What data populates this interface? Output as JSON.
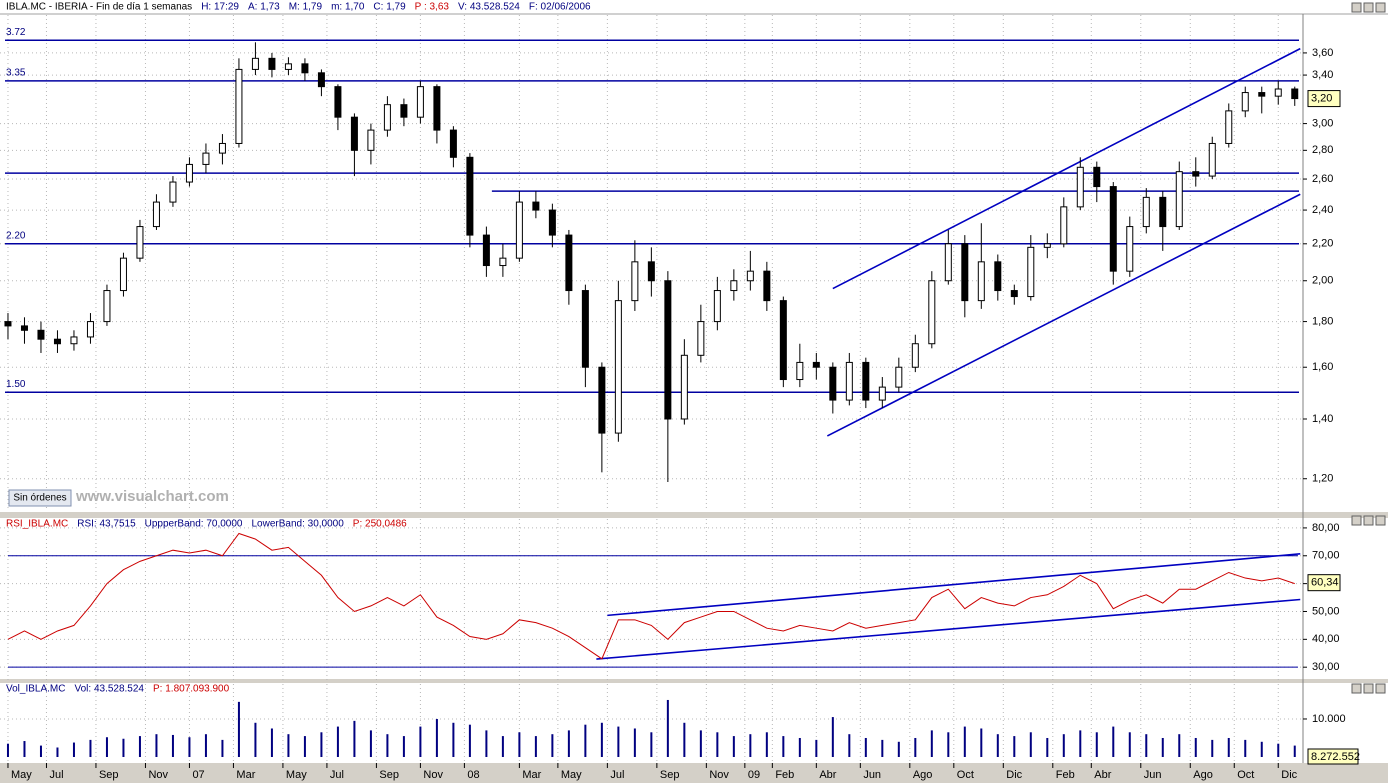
{
  "ui": {
    "button": "Sin órdenes",
    "watermark": "www.visualchart.com"
  },
  "chart_data": [
    {
      "type": "candlestick",
      "header": [
        {
          "text": "IBLA.MC - IBERIA - Fin de día 1 semanas",
          "color": "#000000"
        },
        {
          "text": "H: 17:29",
          "color": "#000080"
        },
        {
          "text": "A: 1,73",
          "color": "#000080"
        },
        {
          "text": "M: 1,79",
          "color": "#000080"
        },
        {
          "text": "m: 1,70",
          "color": "#000080"
        },
        {
          "text": "C: 1,79",
          "color": "#000080"
        },
        {
          "text": "P : 3,63",
          "color": "#cc0000"
        },
        {
          "text": "V: 43.528.524",
          "color": "#000080"
        },
        {
          "text": "F: 02/06/2006",
          "color": "#000080"
        }
      ],
      "log": true,
      "grid": true,
      "color": "#000000",
      "xlim": [
        -1.45,
        235.5
      ],
      "ylim": [
        1.107,
        3.97
      ],
      "xticks": [
        {
          "value": 0,
          "label": "May"
        },
        {
          "value": 7,
          "label": "Jul"
        },
        {
          "value": 16,
          "label": "Sep"
        },
        {
          "value": 25,
          "label": "Nov"
        },
        {
          "value": 33,
          "label": "07"
        },
        {
          "value": 41,
          "label": "Mar"
        },
        {
          "value": 50,
          "label": "May"
        },
        {
          "value": 58,
          "label": "Jul"
        },
        {
          "value": 67,
          "label": "Sep"
        },
        {
          "value": 75,
          "label": "Nov"
        },
        {
          "value": 83,
          "label": "08"
        },
        {
          "value": 93,
          "label": "Mar"
        },
        {
          "value": 100,
          "label": "May"
        },
        {
          "value": 109,
          "label": "Jul"
        },
        {
          "value": 118,
          "label": "Sep"
        },
        {
          "value": 127,
          "label": "Nov"
        },
        {
          "value": 134,
          "label": "09"
        },
        {
          "value": 139,
          "label": "Feb"
        },
        {
          "value": 147,
          "label": "Abr"
        },
        {
          "value": 155,
          "label": "Jun"
        },
        {
          "value": 164,
          "label": "Ago"
        },
        {
          "value": 172,
          "label": "Oct"
        },
        {
          "value": 181,
          "label": "Dic"
        },
        {
          "value": 190,
          "label": "Feb"
        },
        {
          "value": 197,
          "label": "Abr"
        },
        {
          "value": 206,
          "label": "Jun"
        },
        {
          "value": 215,
          "label": "Ago"
        },
        {
          "value": 223,
          "label": "Oct"
        },
        {
          "value": 231,
          "label": "Dic"
        }
      ],
      "yticks": [
        {
          "value": 1.2,
          "label": "1,20"
        },
        {
          "value": 1.4,
          "label": "1,40"
        },
        {
          "value": 1.6,
          "label": "1,60"
        },
        {
          "value": 1.8,
          "label": "1,80"
        },
        {
          "value": 2.0,
          "label": "2,00"
        },
        {
          "value": 2.2,
          "label": "2,20"
        },
        {
          "value": 2.4,
          "label": "2,40"
        },
        {
          "value": 2.6,
          "label": "2,60"
        },
        {
          "value": 2.8,
          "label": "2,80"
        },
        {
          "value": 3.0,
          "label": "3,00"
        },
        {
          "value": 3.4,
          "label": "3,40"
        },
        {
          "value": 3.6,
          "label": "3,60"
        }
      ],
      "last": {
        "value": 3.2,
        "label": "3,20"
      },
      "hlines": [
        {
          "value": 3.72,
          "label": "3.72"
        },
        {
          "value": 3.35,
          "label": "3.35"
        },
        {
          "value": 2.64
        },
        {
          "value": 2.52,
          "from": 88
        },
        {
          "value": 2.2,
          "label": "2.20"
        },
        {
          "value": 1.5,
          "label": "1.50"
        }
      ],
      "trendlines": [
        {
          "x": [
            150,
            235
          ],
          "y": [
            1.96,
            3.64
          ]
        },
        {
          "x": [
            149,
            235
          ],
          "y": [
            1.34,
            2.5
          ]
        }
      ],
      "x": [
        0,
        3,
        6,
        9,
        12,
        15,
        18,
        21,
        24,
        27,
        30,
        33,
        36,
        39,
        42,
        45,
        48,
        51,
        54,
        57,
        60,
        63,
        66,
        69,
        72,
        75,
        78,
        81,
        84,
        87,
        90,
        93,
        96,
        99,
        102,
        105,
        108,
        111,
        114,
        117,
        120,
        123,
        126,
        129,
        132,
        135,
        138,
        141,
        144,
        147,
        150,
        153,
        156,
        159,
        162,
        165,
        168,
        171,
        174,
        177,
        180,
        183,
        186,
        189,
        192,
        195,
        198,
        201,
        204,
        207,
        210,
        213,
        216,
        219,
        222,
        225,
        228,
        231,
        234
      ],
      "ohlc": [
        [
          1.8,
          1.84,
          1.72,
          1.78
        ],
        [
          1.78,
          1.82,
          1.7,
          1.76
        ],
        [
          1.76,
          1.8,
          1.66,
          1.72
        ],
        [
          1.72,
          1.76,
          1.66,
          1.7
        ],
        [
          1.7,
          1.76,
          1.67,
          1.73
        ],
        [
          1.73,
          1.84,
          1.7,
          1.8
        ],
        [
          1.8,
          1.98,
          1.78,
          1.95
        ],
        [
          1.95,
          2.15,
          1.92,
          2.12
        ],
        [
          2.12,
          2.34,
          2.1,
          2.3
        ],
        [
          2.3,
          2.5,
          2.28,
          2.45
        ],
        [
          2.45,
          2.62,
          2.42,
          2.58
        ],
        [
          2.58,
          2.75,
          2.55,
          2.7
        ],
        [
          2.7,
          2.85,
          2.64,
          2.78
        ],
        [
          2.78,
          2.92,
          2.7,
          2.85
        ],
        [
          2.85,
          3.55,
          2.82,
          3.45
        ],
        [
          3.45,
          3.7,
          3.4,
          3.55
        ],
        [
          3.55,
          3.6,
          3.38,
          3.45
        ],
        [
          3.45,
          3.56,
          3.4,
          3.5
        ],
        [
          3.5,
          3.55,
          3.35,
          3.42
        ],
        [
          3.42,
          3.45,
          3.22,
          3.3
        ],
        [
          3.3,
          3.32,
          2.95,
          3.05
        ],
        [
          3.05,
          3.08,
          2.62,
          2.8
        ],
        [
          2.8,
          3.0,
          2.7,
          2.95
        ],
        [
          2.95,
          3.22,
          2.9,
          3.15
        ],
        [
          3.15,
          3.2,
          2.98,
          3.05
        ],
        [
          3.05,
          3.35,
          3.0,
          3.3
        ],
        [
          3.3,
          3.32,
          2.85,
          2.95
        ],
        [
          2.95,
          2.98,
          2.68,
          2.75
        ],
        [
          2.75,
          2.78,
          2.18,
          2.25
        ],
        [
          2.25,
          2.3,
          2.02,
          2.08
        ],
        [
          2.08,
          2.2,
          2.02,
          2.12
        ],
        [
          2.12,
          2.52,
          2.1,
          2.45
        ],
        [
          2.45,
          2.52,
          2.35,
          2.4
        ],
        [
          2.4,
          2.44,
          2.18,
          2.25
        ],
        [
          2.25,
          2.28,
          1.88,
          1.95
        ],
        [
          1.95,
          1.98,
          1.52,
          1.6
        ],
        [
          1.6,
          1.62,
          1.22,
          1.35
        ],
        [
          1.35,
          2.0,
          1.32,
          1.9
        ],
        [
          1.9,
          2.22,
          1.85,
          2.1
        ],
        [
          2.1,
          2.18,
          1.92,
          2.0
        ],
        [
          2.0,
          2.05,
          1.19,
          1.4
        ],
        [
          1.4,
          1.72,
          1.38,
          1.65
        ],
        [
          1.65,
          1.88,
          1.62,
          1.8
        ],
        [
          1.8,
          2.02,
          1.76,
          1.95
        ],
        [
          1.95,
          2.06,
          1.9,
          2.0
        ],
        [
          2.0,
          2.16,
          1.95,
          2.05
        ],
        [
          2.05,
          2.1,
          1.85,
          1.9
        ],
        [
          1.9,
          1.92,
          1.52,
          1.55
        ],
        [
          1.55,
          1.7,
          1.52,
          1.62
        ],
        [
          1.62,
          1.66,
          1.55,
          1.6
        ],
        [
          1.6,
          1.62,
          1.42,
          1.47
        ],
        [
          1.47,
          1.66,
          1.45,
          1.62
        ],
        [
          1.62,
          1.64,
          1.44,
          1.47
        ],
        [
          1.47,
          1.56,
          1.44,
          1.52
        ],
        [
          1.52,
          1.64,
          1.5,
          1.6
        ],
        [
          1.6,
          1.74,
          1.58,
          1.7
        ],
        [
          1.7,
          2.05,
          1.68,
          2.0
        ],
        [
          2.0,
          2.28,
          1.98,
          2.2
        ],
        [
          2.2,
          2.25,
          1.82,
          1.9
        ],
        [
          1.9,
          2.32,
          1.86,
          2.1
        ],
        [
          2.1,
          2.14,
          1.9,
          1.95
        ],
        [
          1.95,
          1.98,
          1.88,
          1.92
        ],
        [
          1.92,
          2.25,
          1.9,
          2.18
        ],
        [
          2.18,
          2.26,
          2.12,
          2.2
        ],
        [
          2.2,
          2.48,
          2.18,
          2.42
        ],
        [
          2.42,
          2.75,
          2.4,
          2.68
        ],
        [
          2.68,
          2.72,
          2.45,
          2.55
        ],
        [
          2.55,
          2.58,
          1.98,
          2.05
        ],
        [
          2.05,
          2.36,
          2.02,
          2.3
        ],
        [
          2.3,
          2.54,
          2.26,
          2.48
        ],
        [
          2.48,
          2.52,
          2.16,
          2.3
        ],
        [
          2.3,
          2.72,
          2.28,
          2.65
        ],
        [
          2.65,
          2.75,
          2.55,
          2.62
        ],
        [
          2.62,
          2.9,
          2.6,
          2.85
        ],
        [
          2.85,
          3.16,
          2.82,
          3.1
        ],
        [
          3.1,
          3.3,
          3.05,
          3.25
        ],
        [
          3.25,
          3.3,
          3.08,
          3.22
        ],
        [
          3.22,
          3.35,
          3.15,
          3.28
        ],
        [
          3.28,
          3.3,
          3.14,
          3.2
        ]
      ]
    },
    {
      "type": "line",
      "header": [
        {
          "text": "RSI_IBLA.MC",
          "color": "#cc0000"
        },
        {
          "text": "RSI: 43,7515",
          "color": "#000080"
        },
        {
          "text": "UppperBand: 70,0000",
          "color": "#000080"
        },
        {
          "text": "LowerBand: 30,0000",
          "color": "#000080"
        },
        {
          "text": "P: 250,0486",
          "color": "#cc0000"
        }
      ],
      "grid": true,
      "color": "#cc0000",
      "xlim": [
        -1.45,
        235.5
      ],
      "ylim": [
        25.4,
        83.2
      ],
      "yticks": [
        {
          "value": 30,
          "label": "30,00"
        },
        {
          "value": 40,
          "label": "40,00"
        },
        {
          "value": 50,
          "label": "50,00"
        },
        {
          "value": 60,
          "label": "60,00"
        },
        {
          "value": 70,
          "label": "70,00"
        },
        {
          "value": 80,
          "label": "80,00"
        }
      ],
      "bands": [
        70,
        30
      ],
      "last": {
        "value": 60.34,
        "label": "60,34"
      },
      "trendlines": [
        {
          "x": [
            109,
            235
          ],
          "y": [
            48.6,
            70.7
          ]
        },
        {
          "x": [
            107,
            235
          ],
          "y": [
            32.9,
            54.3
          ]
        }
      ],
      "x": [
        0,
        3,
        6,
        9,
        12,
        15,
        18,
        21,
        24,
        27,
        30,
        33,
        36,
        39,
        42,
        45,
        48,
        51,
        54,
        57,
        60,
        63,
        66,
        69,
        72,
        75,
        78,
        81,
        84,
        87,
        90,
        93,
        96,
        99,
        102,
        105,
        108,
        111,
        114,
        117,
        120,
        123,
        126,
        129,
        132,
        135,
        138,
        141,
        144,
        147,
        150,
        153,
        156,
        159,
        162,
        165,
        168,
        171,
        174,
        177,
        180,
        183,
        186,
        189,
        192,
        195,
        198,
        201,
        204,
        207,
        210,
        213,
        216,
        219,
        222,
        225,
        228,
        231,
        234
      ],
      "values": [
        40,
        43,
        40,
        43,
        45,
        52,
        60,
        65,
        68,
        70,
        72,
        71,
        72,
        70,
        78,
        76,
        72,
        73,
        68,
        63,
        55,
        50,
        52,
        55,
        52,
        56,
        48,
        45,
        41,
        40,
        42,
        47,
        46,
        44,
        41,
        37,
        33,
        47,
        47,
        45,
        40,
        46,
        48,
        50,
        50,
        47,
        44,
        43,
        45,
        44,
        43,
        46,
        44,
        45,
        46,
        47,
        55,
        58,
        51,
        55,
        53,
        52,
        55,
        56,
        59,
        63,
        60,
        51,
        54,
        56,
        53,
        58,
        58,
        61,
        64,
        62,
        61,
        62,
        60
      ]
    },
    {
      "type": "bar",
      "header": [
        {
          "text": "Vol_IBLA.MC",
          "color": "#000080"
        },
        {
          "text": "Vol: 43.528.524",
          "color": "#000080"
        },
        {
          "text": "P: 1.807.093.900",
          "color": "#cc0000"
        }
      ],
      "grid": true,
      "color": "#000080",
      "xlim": [
        -1.45,
        235.5
      ],
      "ylim": [
        0,
        19200
      ],
      "yticks": [
        {
          "value": 10000,
          "label": "10.000"
        }
      ],
      "last_label": "8.272.552",
      "x": [
        0,
        3,
        6,
        9,
        12,
        15,
        18,
        21,
        24,
        27,
        30,
        33,
        36,
        39,
        42,
        45,
        48,
        51,
        54,
        57,
        60,
        63,
        66,
        69,
        72,
        75,
        78,
        81,
        84,
        87,
        90,
        93,
        96,
        99,
        102,
        105,
        108,
        111,
        114,
        117,
        120,
        123,
        126,
        129,
        132,
        135,
        138,
        141,
        144,
        147,
        150,
        153,
        156,
        159,
        162,
        165,
        168,
        171,
        174,
        177,
        180,
        183,
        186,
        189,
        192,
        195,
        198,
        201,
        204,
        207,
        210,
        213,
        216,
        219,
        222,
        225,
        228,
        231,
        234
      ],
      "values": [
        3500,
        4200,
        3000,
        2500,
        3800,
        4500,
        5200,
        4800,
        5500,
        6000,
        5800,
        5200,
        6000,
        4500,
        14500,
        9000,
        7500,
        6000,
        5500,
        6500,
        8000,
        9500,
        7000,
        6000,
        5500,
        8000,
        10000,
        9000,
        8500,
        7000,
        5500,
        6500,
        5500,
        6000,
        7000,
        8500,
        9000,
        8000,
        7500,
        6500,
        15000,
        9000,
        7000,
        6500,
        5500,
        6000,
        6500,
        5500,
        5000,
        4500,
        10500,
        6000,
        5000,
        4500,
        4000,
        5000,
        7000,
        6500,
        8000,
        7500,
        6000,
        5500,
        6500,
        5000,
        6000,
        7000,
        6500,
        8000,
        6500,
        6000,
        5000,
        6000,
        5000,
        4500,
        5000,
        4500,
        4000,
        3500,
        3000
      ]
    }
  ]
}
